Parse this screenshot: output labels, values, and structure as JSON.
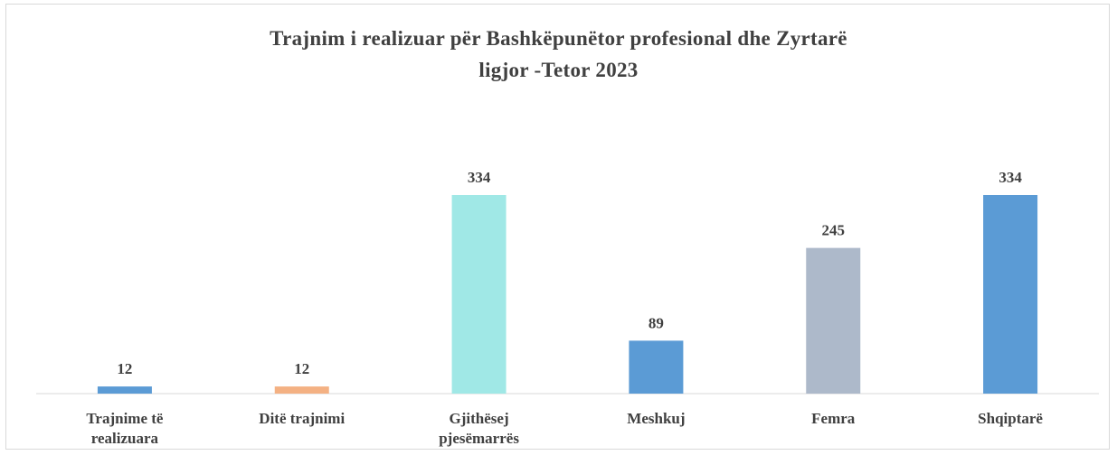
{
  "chart_data": {
    "type": "bar",
    "title": [
      "Trajnim  i realizuar për Bashkëpunëtor profesional dhe Zyrtarë",
      "ligjor -Tetor 2023"
    ],
    "categories": [
      "Trajnime të realizuara",
      "Ditë trajnimi",
      "Gjithësej pjesëmarrës",
      "Meshkuj",
      "Femra",
      "Shqiptarë"
    ],
    "values": [
      12,
      12,
      334,
      89,
      245,
      334
    ],
    "colors": [
      "#5b9bd5",
      "#f4b183",
      "#a0e8e6",
      "#5b9bd5",
      "#adb9ca",
      "#5b9bd5"
    ]
  }
}
